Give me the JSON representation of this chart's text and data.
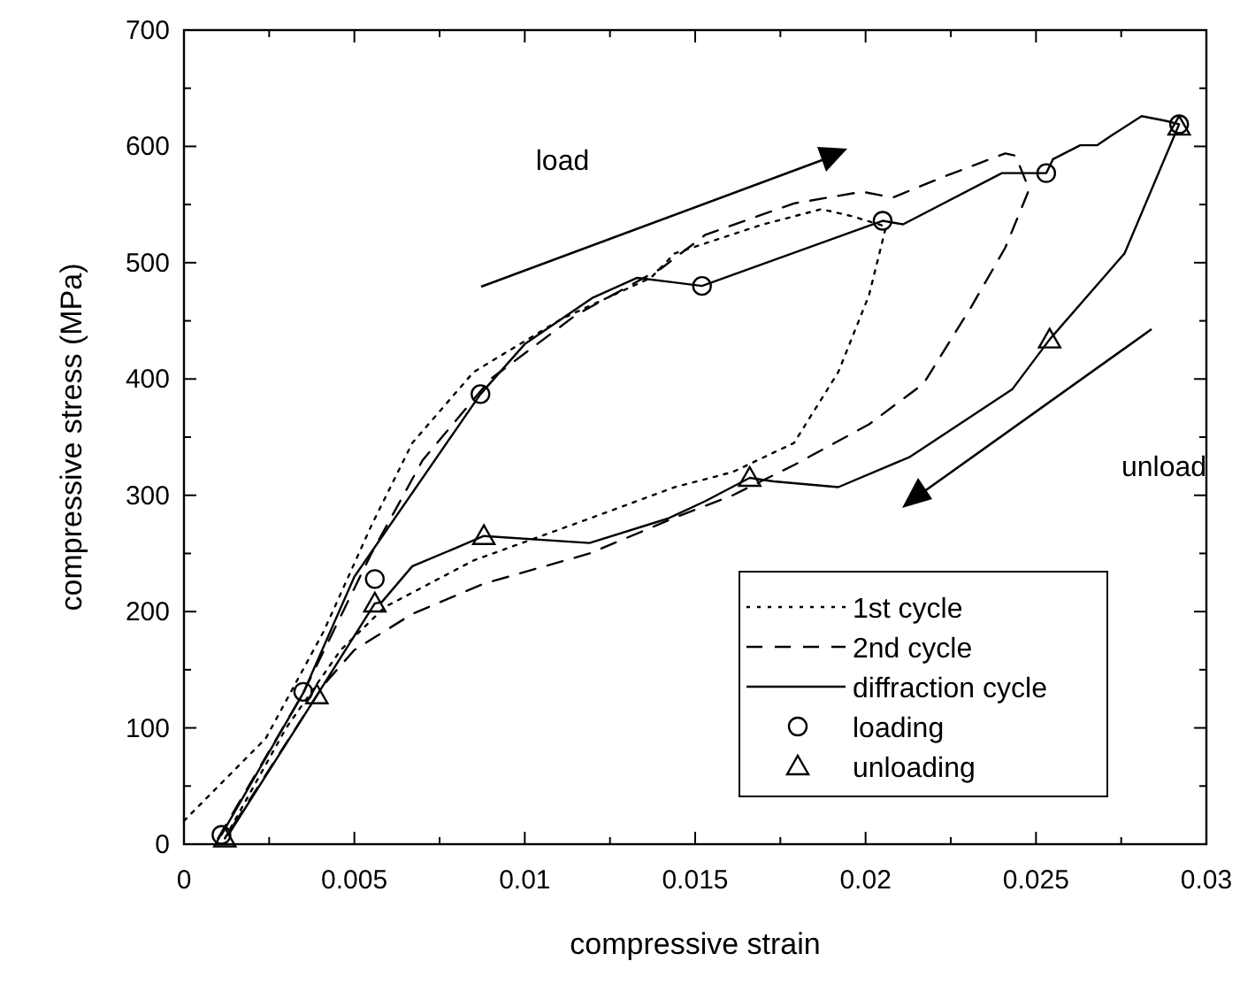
{
  "chart_data": {
    "type": "line",
    "xlabel": "compressive strain",
    "ylabel": "compressive stress (MPa)",
    "xlim": [
      0,
      0.03
    ],
    "ylim": [
      0,
      700
    ],
    "xticks": [
      0,
      0.005,
      0.01,
      0.015,
      0.02,
      0.025,
      0.03
    ],
    "yticks": [
      0,
      100,
      200,
      300,
      400,
      500,
      600,
      700
    ],
    "grid": false,
    "legend": "bottom right",
    "annotations": [
      "load",
      "unload"
    ],
    "series": [
      {
        "name": "1st cycle",
        "color": "#000000",
        "line_style": "dotted",
        "marker": "none",
        "x": [
          0,
          0.0024,
          0.0041,
          0.0055,
          0.0067,
          0.0085,
          0.0111,
          0.0137,
          0.0144,
          0.017,
          0.0187,
          0.0196,
          0.0206,
          0.0201,
          0.0192,
          0.0179,
          0.0161,
          0.0144,
          0.0119,
          0.0085,
          0.0059,
          0.0046,
          0.003,
          0.0012
        ],
        "values": [
          20,
          91,
          183,
          274,
          345,
          406,
          452,
          487,
          508,
          533,
          546,
          540,
          531,
          472,
          406,
          345,
          320,
          307,
          280,
          244,
          204,
          167,
          100,
          5
        ]
      },
      {
        "name": "2nd cycle",
        "color": "#000000",
        "line_style": "dashed",
        "marker": "none",
        "x": [
          0.001,
          0.0035,
          0.0055,
          0.007,
          0.009,
          0.0115,
          0.014,
          0.0153,
          0.0179,
          0.0199,
          0.0208,
          0.0223,
          0.0241,
          0.0244,
          0.0248,
          0.0241,
          0.0231,
          0.0217,
          0.0201,
          0.0179,
          0.0161,
          0.0145,
          0.0119,
          0.0088,
          0.0067,
          0.005,
          0.0041,
          0.0012
        ],
        "values": [
          5,
          130,
          250,
          330,
          400,
          455,
          495,
          524,
          551,
          561,
          556,
          574,
          594,
          592,
          563,
          513,
          462,
          396,
          361,
          326,
          300,
          282,
          250,
          224,
          198,
          167,
          137,
          5
        ]
      },
      {
        "name": "diffraction cycle",
        "color": "#000000",
        "line_style": "solid",
        "marker": "none",
        "x": [
          0.0011,
          0.0035,
          0.005,
          0.0087,
          0.01,
          0.012,
          0.0133,
          0.0152,
          0.0205,
          0.0211,
          0.024,
          0.0253,
          0.0255,
          0.0263,
          0.0268,
          0.0272,
          0.0281,
          0.0288,
          0.0292,
          0.0276,
          0.0254,
          0.0243,
          0.0213,
          0.0192,
          0.0173,
          0.0166,
          0.0153,
          0.0142,
          0.0119,
          0.0088,
          0.008,
          0.0067,
          0.0058,
          0.0056,
          0.0039,
          0.0013
        ],
        "values": [
          8,
          130,
          230,
          387,
          430,
          470,
          487,
          480,
          536,
          533,
          577,
          577,
          589,
          601,
          601,
          609,
          626,
          622,
          619,
          508,
          434,
          391,
          333,
          307,
          312,
          315,
          295,
          280,
          259,
          265,
          255,
          239,
          208,
          207,
          128,
          8
        ]
      },
      {
        "name": "loading",
        "type": "scatter",
        "color": "#000000",
        "marker": "circle",
        "x": [
          0.0011,
          0.0035,
          0.0056,
          0.0087,
          0.0152,
          0.0205,
          0.0253,
          0.0292
        ],
        "values": [
          8,
          131,
          228,
          387,
          480,
          536,
          577,
          619
        ]
      },
      {
        "name": "unloading",
        "type": "scatter",
        "color": "#000000",
        "marker": "triangle",
        "x": [
          0.0292,
          0.0254,
          0.0166,
          0.0088,
          0.0056,
          0.0039,
          0.0012
        ],
        "values": [
          617,
          434,
          315,
          265,
          207,
          128,
          5
        ]
      }
    ]
  }
}
